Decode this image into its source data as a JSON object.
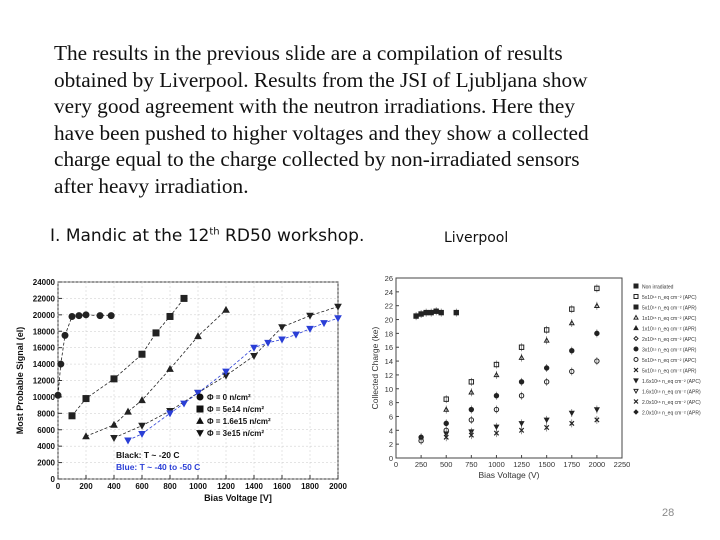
{
  "text": {
    "paragraph_lines": [
      "The results in the previous slide are a compilation of results",
      "obtained by Liverpool. Results from the JSI of Ljubljana show",
      "very good agreement with the neutron irradiations. Here they",
      "have been pushed to higher voltages and they show a collected",
      "charge equal to the charge collected by non-irradiated sensors",
      "after heavy irradiation."
    ],
    "caption_left_pre": "I. Mandic at the 12",
    "caption_left_sup": "th",
    "caption_left_post": " RD50 workshop.",
    "caption_right": "Liverpool",
    "slide_number": "28"
  },
  "colors": {
    "black_series": "#222222",
    "blue_series": "#2b3fd6"
  },
  "chart_data": [
    {
      "type": "scatter",
      "xlabel": "Bias Voltage [V]",
      "ylabel": "Most Probable Signal (el)",
      "xlim": [
        0,
        2000
      ],
      "ylim": [
        0,
        24000
      ],
      "x_ticks": [
        0,
        200,
        400,
        600,
        800,
        1000,
        1200,
        1400,
        1600,
        1800,
        2000
      ],
      "y_ticks": [
        0,
        2000,
        4000,
        6000,
        8000,
        10000,
        12000,
        14000,
        16000,
        18000,
        20000,
        22000,
        24000
      ],
      "annotations": [
        "Black: T ~ -20 C",
        "Blue: T ~ -40 to -50 C"
      ],
      "legend_position": "lower-right",
      "series": [
        {
          "name": "Φ = 0 n/cm²",
          "marker": "circle",
          "color": "black",
          "x": [
            0,
            20,
            50,
            100,
            150,
            200,
            300,
            380
          ],
          "y": [
            10200,
            14000,
            17500,
            19800,
            19900,
            20000,
            19900,
            19900
          ]
        },
        {
          "name": "Φ = 5e14 n/cm²",
          "marker": "square",
          "color": "black",
          "x": [
            100,
            200,
            400,
            600,
            700,
            800,
            900
          ],
          "y": [
            7700,
            9800,
            12200,
            15200,
            17800,
            19800,
            22000
          ]
        },
        {
          "name": "Φ = 1.6e15 n/cm²",
          "marker": "triangle-up",
          "color": "black",
          "x": [
            200,
            400,
            500,
            600,
            800,
            1000,
            1200
          ],
          "y": [
            5200,
            6600,
            8200,
            9600,
            13400,
            17400,
            20600
          ]
        },
        {
          "name": "Φ = 3e15 n/cm²",
          "marker": "triangle-down",
          "color": "black",
          "x": [
            400,
            600,
            800,
            1000,
            1200,
            1400,
            1600,
            1800,
            2000
          ],
          "y": [
            5000,
            6500,
            8300,
            10500,
            12600,
            15000,
            18500,
            19900,
            21000
          ]
        },
        {
          "name": "Φ = 3e15 n/cm² (blue)",
          "marker": "triangle-down",
          "color": "blue",
          "x": [
            500,
            600,
            800,
            900,
            1000,
            1200,
            1400,
            1500,
            1600,
            1700,
            1800,
            1900,
            2000
          ],
          "y": [
            4700,
            5500,
            8000,
            9200,
            10500,
            13100,
            16000,
            16600,
            17000,
            17600,
            18300,
            19000,
            19600
          ]
        }
      ]
    },
    {
      "type": "scatter",
      "xlabel": "Bias Voltage (V)",
      "ylabel": "Collected Charge (ke)",
      "xlim": [
        0,
        2250
      ],
      "ylim": [
        0,
        26
      ],
      "x_ticks": [
        0,
        250,
        500,
        750,
        1000,
        1250,
        1500,
        1750,
        2000,
        2250
      ],
      "y_ticks": [
        0,
        2,
        4,
        6,
        8,
        10,
        12,
        14,
        16,
        18,
        20,
        22,
        24,
        26
      ],
      "legend_position": "right",
      "legend": [
        {
          "label": "Non irradiated",
          "marker": "square-filled"
        },
        {
          "label": "5x10¹⁴ n_eq cm⁻² (APC)",
          "marker": "square-open"
        },
        {
          "label": "5x10¹⁴ n_eq cm⁻² (APR)",
          "marker": "square-filled"
        },
        {
          "label": "1x10¹⁵ n_eq cm⁻² (APC)",
          "marker": "triangle-open"
        },
        {
          "label": "1x10¹⁵ n_eq cm⁻² (APR)",
          "marker": "triangle-filled"
        },
        {
          "label": "2x10¹⁵ n_eq cm⁻² (APC)",
          "marker": "diamond-open"
        },
        {
          "label": "3x10¹⁵ n_eq cm⁻² (APR)",
          "marker": "circle-filled"
        },
        {
          "label": "5x10¹⁵ n_eq cm⁻² (APC)",
          "marker": "circle-open"
        },
        {
          "label": "5x10¹⁵ n_eq cm⁻² (APR)",
          "marker": "cross"
        },
        {
          "label": "1.6x10¹⁶ n_eq cm⁻² (APC)",
          "marker": "triangle-down-filled"
        },
        {
          "label": "1.6x10¹⁶ n_eq cm⁻² (APR)",
          "marker": "triangle-down-open"
        },
        {
          "label": "2.0x10¹⁶ n_eq cm⁻² (APC)",
          "marker": "star"
        },
        {
          "label": "2.0x10¹⁶ n_eq cm⁻² (APR)",
          "marker": "diamond-filled"
        }
      ],
      "series": [
        {
          "name": "Non irradiated",
          "x": [
            200,
            250,
            300,
            350,
            400,
            450,
            600
          ],
          "y": [
            20.5,
            20.8,
            21.0,
            21.0,
            21.2,
            21.0,
            21.0
          ]
        },
        {
          "name": "5x10¹⁴ APC",
          "x": [
            500,
            750,
            1000,
            1250,
            1500,
            1750,
            2000
          ],
          "y": [
            8.5,
            11.0,
            13.5,
            16.0,
            18.5,
            21.5,
            24.5
          ]
        },
        {
          "name": "1x10¹⁵ APC",
          "x": [
            500,
            750,
            1000,
            1250,
            1500,
            1750,
            2000
          ],
          "y": [
            7.0,
            9.5,
            12.0,
            14.5,
            17.0,
            19.5,
            22.0
          ]
        },
        {
          "name": "3x10¹⁵ APR",
          "x": [
            250,
            500,
            750,
            1000,
            1250,
            1500,
            1750,
            2000
          ],
          "y": [
            3.0,
            5.0,
            7.0,
            9.0,
            11.0,
            13.0,
            15.5,
            18.0
          ]
        },
        {
          "name": "5x10¹⁵ APC",
          "x": [
            250,
            500,
            750,
            1000,
            1250,
            1500,
            1750,
            2000
          ],
          "y": [
            2.5,
            4.0,
            5.5,
            7.0,
            9.0,
            11.0,
            12.5,
            14.0
          ]
        },
        {
          "name": "1.6x10¹⁶ APC",
          "x": [
            500,
            750,
            1000,
            1250,
            1500,
            1750,
            2000
          ],
          "y": [
            3.5,
            3.8,
            4.5,
            5.0,
            5.5,
            6.5,
            7.0
          ]
        },
        {
          "name": "2.0x10¹⁶ APC",
          "x": [
            500,
            750,
            1000,
            1250,
            1500,
            1750,
            2000
          ],
          "y": [
            3.0,
            3.3,
            3.6,
            4.0,
            4.4,
            5.0,
            5.5
          ]
        }
      ]
    }
  ]
}
